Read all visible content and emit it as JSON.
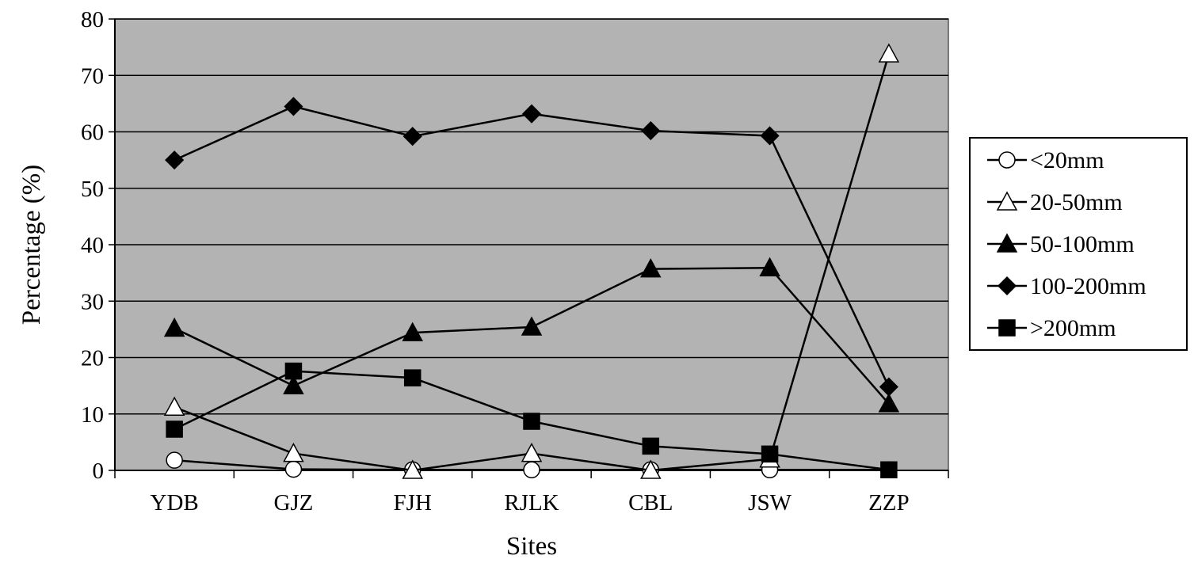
{
  "chart_data": {
    "type": "line",
    "title": "",
    "xlabel": "Sites",
    "ylabel": "Percentage (%)",
    "categories": [
      "YDB",
      "GJZ",
      "FJH",
      "RJLK",
      "CBL",
      "JSW",
      "ZZP"
    ],
    "ylim": [
      0,
      80
    ],
    "yticks": [
      0,
      10,
      20,
      30,
      40,
      50,
      60,
      70,
      80
    ],
    "grid": true,
    "plot_background": "#b3b3b3",
    "legend_position": "right",
    "series": [
      {
        "name": "<20mm",
        "marker": "circle-open",
        "values": [
          1.8,
          0.2,
          0.1,
          0.1,
          0.1,
          0.1,
          0.1
        ]
      },
      {
        "name": "20-50mm",
        "marker": "triangle-open",
        "values": [
          11.2,
          3.0,
          0.0,
          3.0,
          0.0,
          2.0,
          73.8
        ]
      },
      {
        "name": "50-100mm",
        "marker": "triangle-filled",
        "values": [
          25.2,
          15.0,
          24.4,
          25.4,
          35.7,
          35.9,
          11.8
        ]
      },
      {
        "name": "100-200mm",
        "marker": "diamond-filled",
        "values": [
          55.0,
          64.5,
          59.2,
          63.2,
          60.2,
          59.3,
          14.8
        ]
      },
      {
        "name": ">200mm",
        "marker": "square-filled",
        "values": [
          7.3,
          17.6,
          16.4,
          8.7,
          4.3,
          2.9,
          0.1
        ]
      }
    ]
  }
}
